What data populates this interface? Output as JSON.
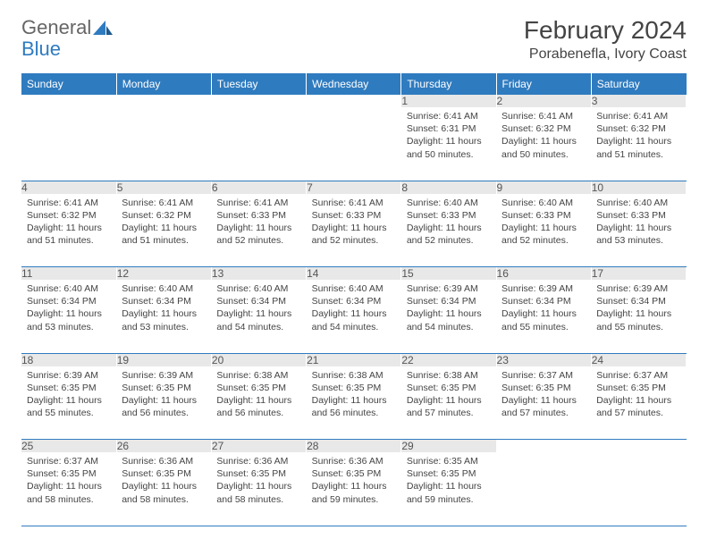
{
  "logo": {
    "part1": "General",
    "part2": "Blue"
  },
  "title": "February 2024",
  "location": "Porabenefla, Ivory Coast",
  "weekdays": [
    "Sunday",
    "Monday",
    "Tuesday",
    "Wednesday",
    "Thursday",
    "Friday",
    "Saturday"
  ],
  "colors": {
    "header_bg": "#2f7bbf",
    "header_text": "#ffffff",
    "daynum_bg": "#e8e8e8",
    "border": "#2f7bbf",
    "text": "#444444"
  },
  "weeks": [
    [
      {
        "n": "",
        "sunrise": "",
        "sunset": "",
        "daylight": ""
      },
      {
        "n": "",
        "sunrise": "",
        "sunset": "",
        "daylight": ""
      },
      {
        "n": "",
        "sunrise": "",
        "sunset": "",
        "daylight": ""
      },
      {
        "n": "",
        "sunrise": "",
        "sunset": "",
        "daylight": ""
      },
      {
        "n": "1",
        "sunrise": "Sunrise: 6:41 AM",
        "sunset": "Sunset: 6:31 PM",
        "daylight": "Daylight: 11 hours and 50 minutes."
      },
      {
        "n": "2",
        "sunrise": "Sunrise: 6:41 AM",
        "sunset": "Sunset: 6:32 PM",
        "daylight": "Daylight: 11 hours and 50 minutes."
      },
      {
        "n": "3",
        "sunrise": "Sunrise: 6:41 AM",
        "sunset": "Sunset: 6:32 PM",
        "daylight": "Daylight: 11 hours and 51 minutes."
      }
    ],
    [
      {
        "n": "4",
        "sunrise": "Sunrise: 6:41 AM",
        "sunset": "Sunset: 6:32 PM",
        "daylight": "Daylight: 11 hours and 51 minutes."
      },
      {
        "n": "5",
        "sunrise": "Sunrise: 6:41 AM",
        "sunset": "Sunset: 6:32 PM",
        "daylight": "Daylight: 11 hours and 51 minutes."
      },
      {
        "n": "6",
        "sunrise": "Sunrise: 6:41 AM",
        "sunset": "Sunset: 6:33 PM",
        "daylight": "Daylight: 11 hours and 52 minutes."
      },
      {
        "n": "7",
        "sunrise": "Sunrise: 6:41 AM",
        "sunset": "Sunset: 6:33 PM",
        "daylight": "Daylight: 11 hours and 52 minutes."
      },
      {
        "n": "8",
        "sunrise": "Sunrise: 6:40 AM",
        "sunset": "Sunset: 6:33 PM",
        "daylight": "Daylight: 11 hours and 52 minutes."
      },
      {
        "n": "9",
        "sunrise": "Sunrise: 6:40 AM",
        "sunset": "Sunset: 6:33 PM",
        "daylight": "Daylight: 11 hours and 52 minutes."
      },
      {
        "n": "10",
        "sunrise": "Sunrise: 6:40 AM",
        "sunset": "Sunset: 6:33 PM",
        "daylight": "Daylight: 11 hours and 53 minutes."
      }
    ],
    [
      {
        "n": "11",
        "sunrise": "Sunrise: 6:40 AM",
        "sunset": "Sunset: 6:34 PM",
        "daylight": "Daylight: 11 hours and 53 minutes."
      },
      {
        "n": "12",
        "sunrise": "Sunrise: 6:40 AM",
        "sunset": "Sunset: 6:34 PM",
        "daylight": "Daylight: 11 hours and 53 minutes."
      },
      {
        "n": "13",
        "sunrise": "Sunrise: 6:40 AM",
        "sunset": "Sunset: 6:34 PM",
        "daylight": "Daylight: 11 hours and 54 minutes."
      },
      {
        "n": "14",
        "sunrise": "Sunrise: 6:40 AM",
        "sunset": "Sunset: 6:34 PM",
        "daylight": "Daylight: 11 hours and 54 minutes."
      },
      {
        "n": "15",
        "sunrise": "Sunrise: 6:39 AM",
        "sunset": "Sunset: 6:34 PM",
        "daylight": "Daylight: 11 hours and 54 minutes."
      },
      {
        "n": "16",
        "sunrise": "Sunrise: 6:39 AM",
        "sunset": "Sunset: 6:34 PM",
        "daylight": "Daylight: 11 hours and 55 minutes."
      },
      {
        "n": "17",
        "sunrise": "Sunrise: 6:39 AM",
        "sunset": "Sunset: 6:34 PM",
        "daylight": "Daylight: 11 hours and 55 minutes."
      }
    ],
    [
      {
        "n": "18",
        "sunrise": "Sunrise: 6:39 AM",
        "sunset": "Sunset: 6:35 PM",
        "daylight": "Daylight: 11 hours and 55 minutes."
      },
      {
        "n": "19",
        "sunrise": "Sunrise: 6:39 AM",
        "sunset": "Sunset: 6:35 PM",
        "daylight": "Daylight: 11 hours and 56 minutes."
      },
      {
        "n": "20",
        "sunrise": "Sunrise: 6:38 AM",
        "sunset": "Sunset: 6:35 PM",
        "daylight": "Daylight: 11 hours and 56 minutes."
      },
      {
        "n": "21",
        "sunrise": "Sunrise: 6:38 AM",
        "sunset": "Sunset: 6:35 PM",
        "daylight": "Daylight: 11 hours and 56 minutes."
      },
      {
        "n": "22",
        "sunrise": "Sunrise: 6:38 AM",
        "sunset": "Sunset: 6:35 PM",
        "daylight": "Daylight: 11 hours and 57 minutes."
      },
      {
        "n": "23",
        "sunrise": "Sunrise: 6:37 AM",
        "sunset": "Sunset: 6:35 PM",
        "daylight": "Daylight: 11 hours and 57 minutes."
      },
      {
        "n": "24",
        "sunrise": "Sunrise: 6:37 AM",
        "sunset": "Sunset: 6:35 PM",
        "daylight": "Daylight: 11 hours and 57 minutes."
      }
    ],
    [
      {
        "n": "25",
        "sunrise": "Sunrise: 6:37 AM",
        "sunset": "Sunset: 6:35 PM",
        "daylight": "Daylight: 11 hours and 58 minutes."
      },
      {
        "n": "26",
        "sunrise": "Sunrise: 6:36 AM",
        "sunset": "Sunset: 6:35 PM",
        "daylight": "Daylight: 11 hours and 58 minutes."
      },
      {
        "n": "27",
        "sunrise": "Sunrise: 6:36 AM",
        "sunset": "Sunset: 6:35 PM",
        "daylight": "Daylight: 11 hours and 58 minutes."
      },
      {
        "n": "28",
        "sunrise": "Sunrise: 6:36 AM",
        "sunset": "Sunset: 6:35 PM",
        "daylight": "Daylight: 11 hours and 59 minutes."
      },
      {
        "n": "29",
        "sunrise": "Sunrise: 6:35 AM",
        "sunset": "Sunset: 6:35 PM",
        "daylight": "Daylight: 11 hours and 59 minutes."
      },
      {
        "n": "",
        "sunrise": "",
        "sunset": "",
        "daylight": ""
      },
      {
        "n": "",
        "sunrise": "",
        "sunset": "",
        "daylight": ""
      }
    ]
  ]
}
